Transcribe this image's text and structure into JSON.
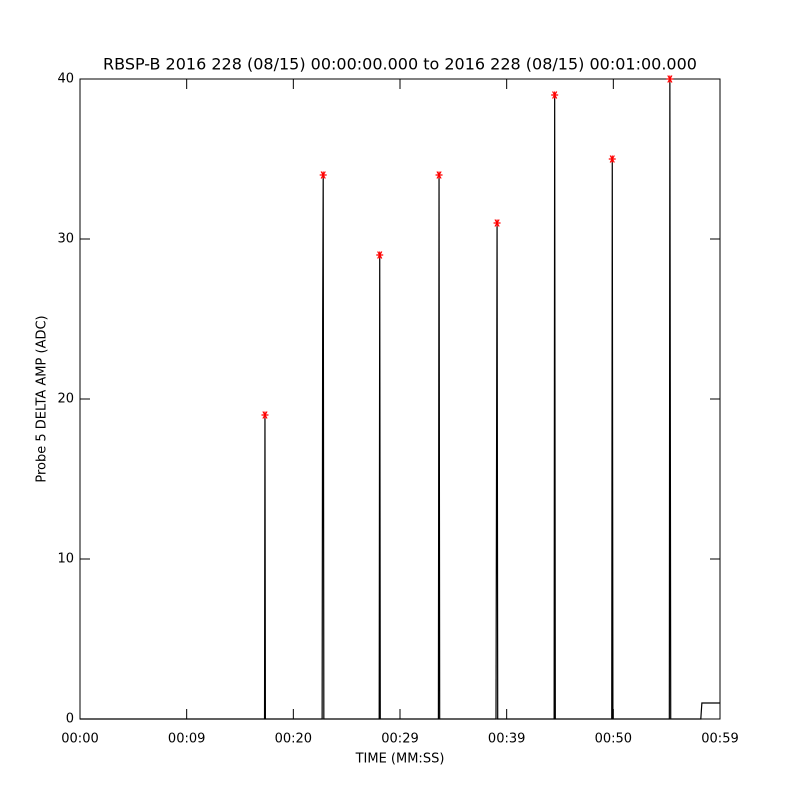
{
  "chart_data": {
    "type": "line",
    "title": "RBSP-B 2016 228 (08/15) 00:00:00.000 to 2016 228 (08/15) 00:01:00.000",
    "x_label": "TIME (MM:SS)",
    "y_label": "Probe 5 DELTA AMP (ADC)",
    "xlim": [
      0,
      60
    ],
    "ylim": [
      0,
      40
    ],
    "xticks": [
      {
        "value": 0,
        "label": "00:00"
      },
      {
        "value": 10,
        "label": "00:09"
      },
      {
        "value": 20,
        "label": "00:20"
      },
      {
        "value": 30,
        "label": "00:29"
      },
      {
        "value": 40,
        "label": "00:39"
      },
      {
        "value": 50,
        "label": "00:50"
      },
      {
        "value": 60,
        "label": "00:59"
      }
    ],
    "yticks": [
      0,
      10,
      20,
      30,
      40
    ],
    "trace": {
      "color": "#000000",
      "x": [
        0,
        17.3,
        17.34,
        17.38,
        22.7,
        22.75,
        22.8,
        22.86,
        28.05,
        28.1,
        28.15,
        33.6,
        33.66,
        33.72,
        39.0,
        39.1,
        39.16,
        44.45,
        44.5,
        44.56,
        49.85,
        49.9,
        49.96,
        55.25,
        55.3,
        55.38,
        58.2,
        58.3,
        60
      ],
      "values": [
        0,
        0,
        19,
        0,
        0,
        25,
        34,
        0,
        0,
        29,
        0,
        0,
        34,
        0,
        0,
        31,
        0,
        0,
        39,
        0,
        0,
        35,
        0,
        0,
        40,
        0,
        0,
        1,
        1
      ]
    },
    "peaks": {
      "color": "#ff0000",
      "x": [
        17.34,
        22.8,
        28.1,
        33.66,
        39.1,
        44.5,
        49.9,
        55.3
      ],
      "values": [
        19,
        34,
        29,
        34,
        31,
        39,
        35,
        40
      ]
    }
  }
}
